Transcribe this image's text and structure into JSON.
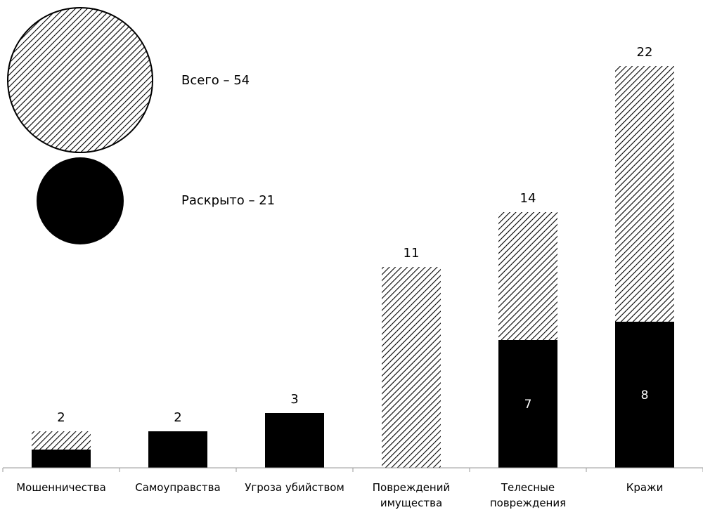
{
  "chart_data": {
    "type": "bar",
    "categories": [
      [
        "Мошенничества"
      ],
      [
        "Самоуправства"
      ],
      [
        "Угроза убийством"
      ],
      [
        "Повреждений",
        "имущества"
      ],
      [
        "Телесные",
        "повреждения"
      ],
      [
        "Кражи"
      ]
    ],
    "series": [
      {
        "values": [
          2,
          2,
          3,
          11,
          14,
          22
        ],
        "pattern": "hatch"
      },
      {
        "values": [
          1,
          2,
          3,
          0,
          7,
          8
        ],
        "pattern": "solid"
      }
    ],
    "total_labels": [
      "2",
      "2",
      "3",
      "11",
      "14",
      "22"
    ],
    "inner_labels": [
      "",
      "",
      "",
      "",
      "7",
      "8"
    ],
    "ylim": [
      0,
      24
    ],
    "grid": false,
    "legend": {
      "placement": "top-left",
      "items": [
        {
          "text": "Всего – 54",
          "pattern": "hatch"
        },
        {
          "text": "Раскрыто – 21",
          "pattern": "solid"
        }
      ]
    },
    "colors": {
      "solid": "#000000",
      "hatch_line": "#000000",
      "background": "#ffffff"
    }
  }
}
